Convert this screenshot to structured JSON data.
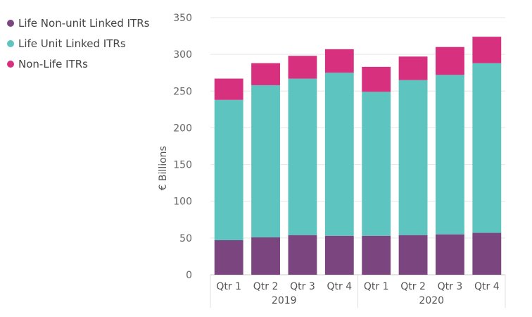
{
  "chart_data": {
    "type": "bar",
    "stacked": true,
    "title": "",
    "xlabel": "",
    "ylabel": "€ Billions",
    "ylim": [
      0,
      350
    ],
    "yticks": [
      0,
      50,
      100,
      150,
      200,
      250,
      300,
      350
    ],
    "grid": true,
    "legend_position": "top-left",
    "categories": [
      "Qtr 1",
      "Qtr 2",
      "Qtr 3",
      "Qtr 4",
      "Qtr 1",
      "Qtr 2",
      "Qtr 3",
      "Qtr 4"
    ],
    "groups": [
      {
        "label": "2019",
        "count": 4
      },
      {
        "label": "2020",
        "count": 4
      }
    ],
    "series": [
      {
        "name": "Life Non-unit Linked ITRs",
        "color": "#7b4680",
        "values": [
          47,
          51,
          54,
          53,
          53,
          54,
          55,
          57
        ]
      },
      {
        "name": "Life Unit Linked ITRs",
        "color": "#5ec4c0",
        "values": [
          191,
          207,
          213,
          222,
          196,
          211,
          217,
          231
        ]
      },
      {
        "name": "Non-Life ITRs",
        "color": "#d6307f",
        "values": [
          29,
          30,
          31,
          32,
          34,
          32,
          38,
          36
        ]
      }
    ]
  }
}
